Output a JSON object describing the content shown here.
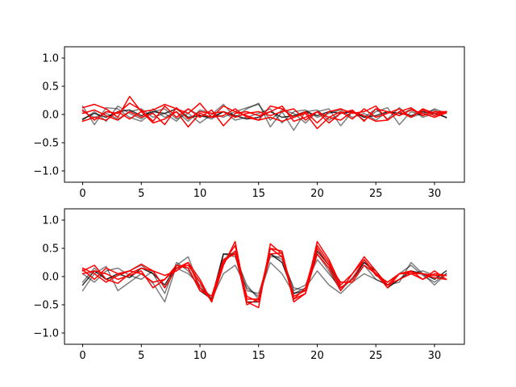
{
  "chart_data": [
    {
      "type": "line",
      "xlim": [
        -1.55,
        32.55
      ],
      "ylim": [
        -1.2,
        1.2
      ],
      "x_ticks": [
        0,
        5,
        10,
        15,
        20,
        25,
        30
      ],
      "x_tick_labels": [
        "0",
        "5",
        "10",
        "15",
        "20",
        "25",
        "30"
      ],
      "y_ticks": [
        1.0,
        0.5,
        0.0,
        -0.5,
        -1.0
      ],
      "y_tick_labels": [
        "1.0",
        "0.5",
        "0.0",
        "−0.5",
        "−1.0"
      ],
      "grid": false,
      "x": [
        0,
        1,
        2,
        3,
        4,
        5,
        6,
        7,
        8,
        9,
        10,
        11,
        12,
        13,
        14,
        15,
        16,
        17,
        18,
        19,
        20,
        21,
        22,
        23,
        24,
        25,
        26,
        27,
        28,
        29,
        30,
        31
      ],
      "series": [
        {
          "color": "#000000",
          "opacity": 0.5,
          "values": [
            0.15,
            -0.18,
            0.12,
            0.1,
            -0.05,
            -0.12,
            0.05,
            0.1,
            -0.08,
            0.02,
            -0.15,
            0.0,
            0.18,
            -0.05,
            0.1,
            0.2,
            -0.22,
            0.05,
            -0.28,
            0.05,
            0.08,
            -0.1,
            0.02,
            0.05,
            -0.05,
            0.1,
            -0.08,
            0.12,
            -0.05,
            0.02,
            0.08,
            -0.06
          ]
        },
        {
          "color": "#000000",
          "opacity": 0.5,
          "values": [
            -0.1,
            0.05,
            -0.12,
            0.15,
            0.02,
            -0.08,
            0.1,
            -0.05,
            0.05,
            -0.12,
            0.08,
            0.02,
            -0.05,
            0.05,
            0.12,
            0.18,
            -0.1,
            0.08,
            0.02,
            -0.15,
            0.05,
            0.1,
            -0.2,
            0.05,
            -0.1,
            0.05,
            0.12,
            -0.18,
            0.05,
            -0.02,
            0.1,
            0.02
          ]
        },
        {
          "color": "#000000",
          "opacity": 0.5,
          "values": [
            0.05,
            -0.05,
            0.02,
            -0.08,
            0.05,
            0.1,
            -0.05,
            0.02,
            -0.12,
            0.1,
            -0.02,
            -0.08,
            0.05,
            -0.1,
            -0.05,
            0.02,
            0.1,
            -0.15,
            0.05,
            0.08,
            -0.05,
            0.02,
            0.08,
            -0.05,
            0.02,
            -0.1,
            0.05,
            -0.02,
            0.1,
            -0.05,
            0.02,
            0.05
          ]
        },
        {
          "color": "#000000",
          "opacity": 0.8,
          "values": [
            -0.08,
            0.02,
            -0.05,
            0.05,
            0.08,
            -0.02,
            0.05,
            0.02,
            0.1,
            -0.05,
            -0.02,
            -0.05,
            0.05,
            -0.02,
            -0.08,
            -0.05,
            0.05,
            -0.05,
            -0.02,
            0.05,
            -0.02,
            0.05,
            0.02,
            0.05,
            -0.05,
            -0.02,
            0.05,
            0.02,
            -0.02,
            0.05,
            0.02,
            -0.05
          ]
        },
        {
          "color": "#ff0000",
          "opacity": 1,
          "values": [
            0.12,
            0.18,
            0.1,
            -0.05,
            0.32,
            0.05,
            0.08,
            0.18,
            0.1,
            0.02,
            0.2,
            -0.05,
            0.15,
            0.05,
            -0.02,
            -0.1,
            0.15,
            0.1,
            -0.05,
            0.05,
            -0.15,
            0.05,
            0.1,
            0.02,
            0.05,
            0.15,
            -0.1,
            0.05,
            0.12,
            -0.02,
            0.05,
            0.05
          ]
        },
        {
          "color": "#ff0000",
          "opacity": 1,
          "values": [
            0.08,
            -0.1,
            0.05,
            0.02,
            0.2,
            0.08,
            -0.12,
            0.15,
            -0.05,
            0.1,
            -0.05,
            0.08,
            -0.2,
            0.02,
            0.05,
            -0.02,
            0.05,
            0.15,
            -0.12,
            -0.05,
            0.05,
            -0.15,
            0.02,
            0.08,
            -0.12,
            0.1,
            0.05,
            -0.02,
            0.08,
            0.02,
            -0.05,
            0.03
          ]
        },
        {
          "color": "#ff0000",
          "opacity": 1,
          "values": [
            -0.12,
            -0.05,
            -0.1,
            0.05,
            -0.08,
            0.05,
            -0.15,
            -0.08,
            0.05,
            -0.22,
            0.02,
            -0.05,
            -0.02,
            0.1,
            -0.05,
            -0.1,
            -0.05,
            -0.12,
            -0.05,
            0.02,
            -0.25,
            -0.05,
            -0.1,
            0.05,
            -0.02,
            -0.12,
            -0.1,
            0.05,
            -0.05,
            0.08,
            -0.02,
            0.05
          ]
        },
        {
          "color": "#ff0000",
          "opacity": 1,
          "values": [
            0.02,
            0.08,
            -0.02,
            -0.1,
            0.05,
            -0.05,
            0.02,
            -0.18,
            0.12,
            -0.08,
            0.05,
            0.02,
            0.05,
            -0.05,
            0.02,
            0.05,
            -0.02,
            0.05,
            0.1,
            -0.1,
            0.05,
            -0.05,
            0.05,
            -0.08,
            0.1,
            -0.05,
            0.02,
            0.1,
            -0.05,
            0.1,
            0.02,
            0.05
          ]
        }
      ]
    },
    {
      "type": "line",
      "xlim": [
        -1.55,
        32.55
      ],
      "ylim": [
        -1.2,
        1.2
      ],
      "x_ticks": [
        0,
        5,
        10,
        15,
        20,
        25,
        30
      ],
      "x_tick_labels": [
        "0",
        "5",
        "10",
        "15",
        "20",
        "25",
        "30"
      ],
      "y_ticks": [
        1.0,
        0.5,
        0.0,
        -0.5,
        -1.0
      ],
      "y_tick_labels": [
        "1.0",
        "0.5",
        "0.0",
        "−0.5",
        "−1.0"
      ],
      "grid": false,
      "x": [
        0,
        1,
        2,
        3,
        4,
        5,
        6,
        7,
        8,
        9,
        10,
        11,
        12,
        13,
        14,
        15,
        16,
        17,
        18,
        19,
        20,
        21,
        22,
        23,
        24,
        25,
        26,
        27,
        28,
        29,
        30,
        31
      ],
      "series": [
        {
          "color": "#000000",
          "opacity": 0.5,
          "values": [
            -0.25,
            0.05,
            0.18,
            -0.25,
            -0.1,
            0.05,
            -0.12,
            -0.45,
            0.2,
            0.35,
            -0.2,
            -0.4,
            0.05,
            0.2,
            -0.2,
            -0.35,
            0.25,
            0.05,
            -0.3,
            -0.2,
            0.1,
            -0.15,
            -0.3,
            -0.1,
            0.05,
            -0.05,
            -0.15,
            -0.1,
            0.25,
            0.05,
            -0.15,
            0.05
          ]
        },
        {
          "color": "#000000",
          "opacity": 0.5,
          "values": [
            0.05,
            -0.1,
            0.1,
            0.15,
            0.02,
            -0.05,
            0.1,
            -0.2,
            0.15,
            0.05,
            -0.15,
            -0.4,
            0.4,
            0.35,
            -0.15,
            -0.4,
            0.4,
            0.3,
            -0.2,
            -0.25,
            0.4,
            0.1,
            -0.25,
            -0.02,
            0.25,
            0.05,
            -0.1,
            0.05,
            0.2,
            0.02,
            -0.1,
            0.05
          ]
        },
        {
          "color": "#000000",
          "opacity": 0.5,
          "values": [
            -0.1,
            0.15,
            -0.05,
            0.02,
            0.1,
            0.2,
            0.05,
            -0.3,
            0.25,
            0.1,
            -0.2,
            -0.35,
            0.3,
            0.45,
            -0.25,
            -0.3,
            0.35,
            0.35,
            -0.25,
            -0.15,
            0.3,
            0.05,
            -0.2,
            -0.05,
            0.2,
            -0.05,
            -0.15,
            -0.05,
            0.05,
            0.1,
            0.02,
            -0.05
          ]
        },
        {
          "color": "#000000",
          "opacity": 0.8,
          "values": [
            -0.15,
            0.1,
            -0.05,
            0.05,
            -0.02,
            0.15,
            0.05,
            -0.15,
            0.2,
            0.15,
            -0.25,
            -0.4,
            0.4,
            0.4,
            -0.45,
            -0.45,
            0.4,
            0.25,
            -0.3,
            -0.25,
            0.45,
            0.2,
            -0.2,
            -0.05,
            0.25,
            0.1,
            -0.2,
            -0.05,
            0.1,
            0.05,
            -0.05,
            0.1
          ]
        },
        {
          "color": "#ff0000",
          "opacity": 1,
          "values": [
            0.15,
            0.05,
            -0.1,
            0.02,
            0.1,
            0.22,
            0.1,
            -0.2,
            0.15,
            0.2,
            -0.1,
            -0.45,
            0.2,
            0.62,
            -0.45,
            -0.55,
            0.58,
            0.4,
            -0.45,
            -0.3,
            0.62,
            0.3,
            -0.15,
            0.05,
            0.35,
            0.1,
            -0.15,
            0.05,
            0.1,
            -0.05,
            0.1,
            -0.05
          ]
        },
        {
          "color": "#ff0000",
          "opacity": 1,
          "values": [
            0.1,
            0.2,
            -0.05,
            -0.12,
            0.05,
            0.15,
            0.1,
            0.02,
            0.1,
            0.25,
            -0.2,
            -0.42,
            0.25,
            0.55,
            -0.4,
            -0.4,
            0.5,
            0.45,
            -0.4,
            -0.2,
            0.55,
            0.25,
            -0.2,
            -0.05,
            0.3,
            0.05,
            -0.15,
            -0.05,
            0.05,
            0.05,
            -0.02,
            -0.05
          ]
        },
        {
          "color": "#ff0000",
          "opacity": 1,
          "values": [
            0.05,
            0.1,
            0.05,
            -0.05,
            0.02,
            0.1,
            -0.2,
            -0.05,
            0.2,
            0.15,
            -0.25,
            -0.35,
            0.3,
            0.4,
            -0.35,
            -0.45,
            0.4,
            0.42,
            -0.35,
            -0.25,
            0.5,
            0.2,
            -0.1,
            -0.1,
            0.2,
            0.05,
            -0.2,
            0.05,
            0.08,
            0.05,
            0.02,
            0.02
          ]
        },
        {
          "color": "#ff0000",
          "opacity": 1,
          "values": [
            0.12,
            -0.05,
            0.15,
            0.05,
            0.1,
            0.05,
            -0.1,
            -0.05,
            0.15,
            0.25,
            -0.05,
            -0.45,
            0.25,
            0.45,
            -0.5,
            -0.4,
            0.5,
            0.35,
            -0.4,
            -0.3,
            0.4,
            0.15,
            -0.25,
            0.05,
            0.3,
            0.02,
            -0.1,
            0.05,
            0.05,
            -0.05,
            0.05,
            0.02
          ]
        }
      ]
    }
  ]
}
